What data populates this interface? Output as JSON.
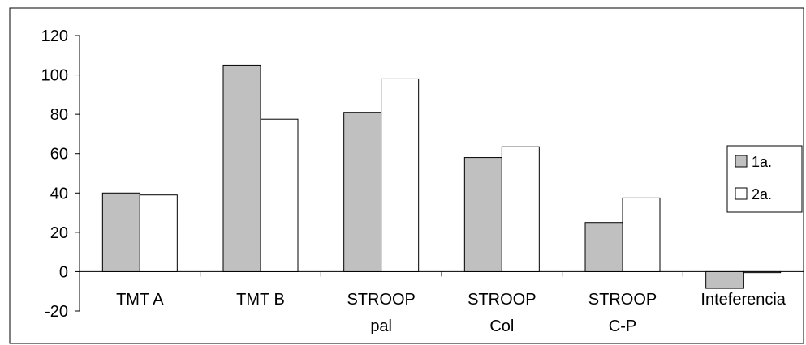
{
  "chart_data": {
    "type": "bar",
    "categories": [
      [
        "TMT A"
      ],
      [
        "TMT B"
      ],
      [
        "STROOP",
        "pal"
      ],
      [
        "STROOP",
        "Col"
      ],
      [
        "STROOP",
        "C-P"
      ],
      [
        "Inteferencia"
      ]
    ],
    "series": [
      {
        "name": "1a.",
        "color": "#c0c0c0",
        "values": [
          40,
          105,
          81,
          58,
          25,
          -8.5
        ]
      },
      {
        "name": "2a.",
        "color": "#ffffff",
        "values": [
          39,
          77.5,
          98,
          63.5,
          37.5,
          -0.5
        ]
      }
    ],
    "ylim": [
      -20,
      120
    ],
    "yticks": [
      -20,
      0,
      20,
      40,
      60,
      80,
      100,
      120
    ],
    "title": "",
    "xlabel": "",
    "ylabel": "",
    "legend": "right",
    "grid": false
  }
}
